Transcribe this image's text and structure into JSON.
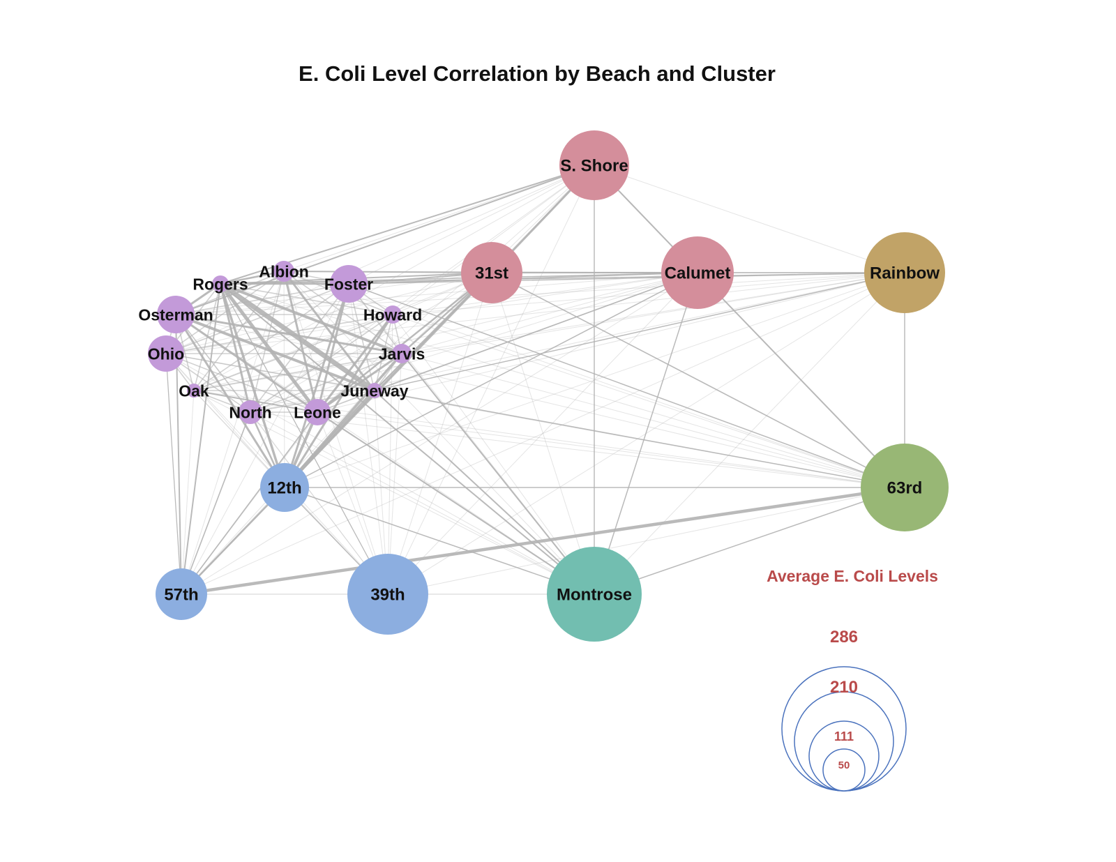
{
  "title": "E. Coli Level Correlation by Beach and Cluster",
  "colors": {
    "purple": "#c39ad9",
    "pink": "#d48e9b",
    "gold": "#c1a367",
    "green": "#98b775",
    "blue": "#8caee0",
    "teal": "#72beb0",
    "edge": "#b3b3b3",
    "legend_text": "#b94a4a",
    "legend_stroke": "#4a72bd"
  },
  "nodes": [
    {
      "id": "s_shore",
      "label": "S. Shore",
      "cluster": "pink"
    },
    {
      "id": "31st",
      "label": "31st",
      "cluster": "pink"
    },
    {
      "id": "calumet",
      "label": "Calumet",
      "cluster": "pink"
    },
    {
      "id": "rainbow",
      "label": "Rainbow",
      "cluster": "gold"
    },
    {
      "id": "63rd",
      "label": "63rd",
      "cluster": "green"
    },
    {
      "id": "montrose",
      "label": "Montrose",
      "cluster": "teal"
    },
    {
      "id": "39th",
      "label": "39th",
      "cluster": "blue"
    },
    {
      "id": "57th",
      "label": "57th",
      "cluster": "blue"
    },
    {
      "id": "12th",
      "label": "12th",
      "cluster": "blue"
    },
    {
      "id": "rogers",
      "label": "Rogers",
      "cluster": "purple"
    },
    {
      "id": "albion",
      "label": "Albion",
      "cluster": "purple"
    },
    {
      "id": "foster",
      "label": "Foster",
      "cluster": "purple"
    },
    {
      "id": "osterman",
      "label": "Osterman",
      "cluster": "purple"
    },
    {
      "id": "howard",
      "label": "Howard",
      "cluster": "purple"
    },
    {
      "id": "ohio",
      "label": "Ohio",
      "cluster": "purple"
    },
    {
      "id": "jarvis",
      "label": "Jarvis",
      "cluster": "purple"
    },
    {
      "id": "oak",
      "label": "Oak",
      "cluster": "purple"
    },
    {
      "id": "juneway",
      "label": "Juneway",
      "cluster": "purple"
    },
    {
      "id": "north",
      "label": "North",
      "cluster": "purple"
    },
    {
      "id": "leone",
      "label": "Leone",
      "cluster": "purple"
    }
  ],
  "legend": {
    "title": "Average E. Coli Levels",
    "values": [
      "286",
      "210",
      "111",
      "50"
    ]
  }
}
